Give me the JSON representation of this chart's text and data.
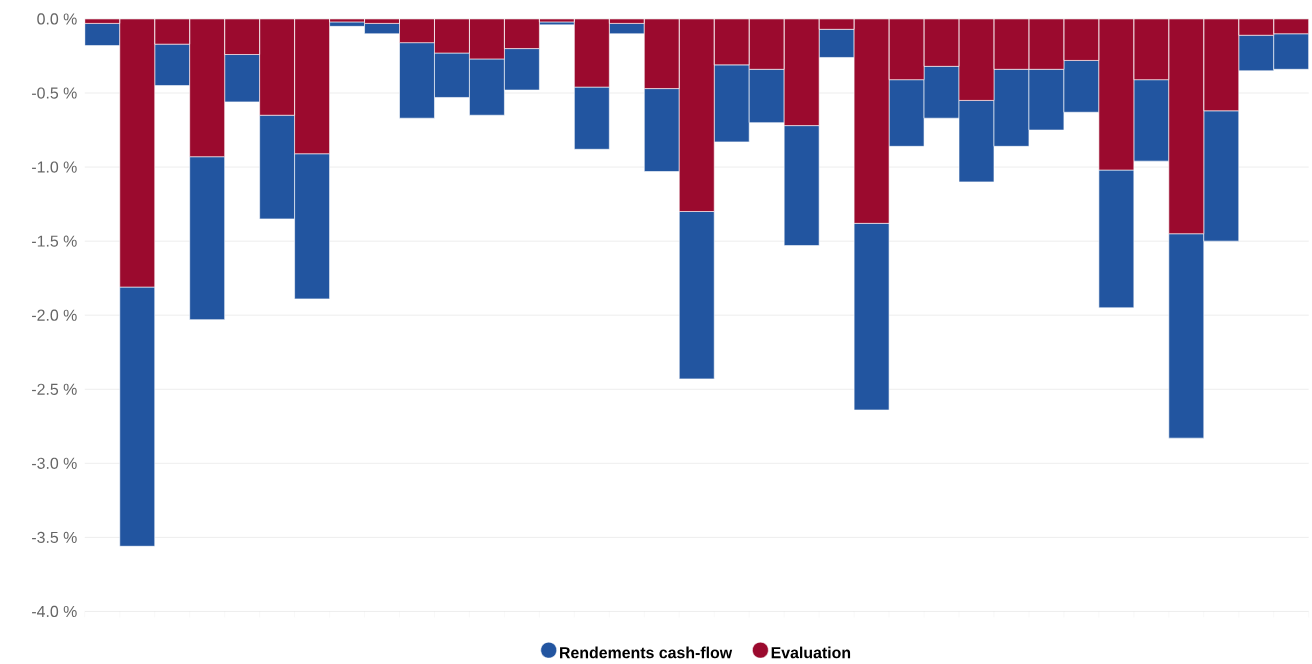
{
  "chart_data": {
    "type": "bar",
    "stacked": true,
    "categories": [
      null,
      null,
      null,
      null,
      null,
      null,
      null,
      null,
      null,
      null,
      null,
      null,
      null,
      null,
      null,
      null,
      null,
      null,
      null,
      null,
      null,
      null,
      null,
      null,
      null,
      null,
      null,
      null,
      null,
      null,
      null,
      null,
      null,
      null,
      null
    ],
    "series": [
      {
        "name": "Evaluation",
        "color": "#9b0a2e",
        "values": [
          -0.03,
          -1.81,
          -0.17,
          -0.93,
          -0.24,
          -0.65,
          -0.91,
          -0.02,
          -0.03,
          -0.16,
          -0.23,
          -0.27,
          -0.2,
          -0.02,
          -0.46,
          -0.03,
          -0.47,
          -1.3,
          -0.31,
          -0.34,
          -0.72,
          -0.07,
          -1.38,
          -0.41,
          -0.32,
          -0.55,
          -0.34,
          -0.34,
          -0.28,
          -1.02,
          -0.41,
          -1.45,
          -0.62,
          -0.11,
          -0.1
        ]
      },
      {
        "name": "Rendements cash-flow",
        "color": "#2255a0",
        "values": [
          -0.15,
          -1.75,
          -0.28,
          -1.1,
          -0.32,
          -0.7,
          -0.98,
          -0.03,
          -0.07,
          -0.51,
          -0.3,
          -0.38,
          -0.28,
          -0.02,
          -0.42,
          -0.07,
          -0.56,
          -1.13,
          -0.52,
          -0.36,
          -0.81,
          -0.19,
          -1.26,
          -0.45,
          -0.35,
          -0.55,
          -0.52,
          -0.41,
          -0.35,
          -0.93,
          -0.55,
          -1.38,
          -0.88,
          -0.24,
          -0.24
        ]
      }
    ],
    "ylim": [
      -4.0,
      0.0
    ],
    "yticks": [
      {
        "value": 0.0,
        "label": "0.0 %"
      },
      {
        "value": -0.5,
        "label": "-0.5 %"
      },
      {
        "value": -1.0,
        "label": "-1.0 %"
      },
      {
        "value": -1.5,
        "label": "-1.5 %"
      },
      {
        "value": -2.0,
        "label": "-2.0 %"
      },
      {
        "value": -2.5,
        "label": "-2.5 %"
      },
      {
        "value": -3.0,
        "label": "-3.0 %"
      },
      {
        "value": -3.5,
        "label": "-3.5 %"
      },
      {
        "value": -4.0,
        "label": "-4.0 %"
      }
    ],
    "grid": "y",
    "legend": "bottom",
    "marker": "circle"
  }
}
